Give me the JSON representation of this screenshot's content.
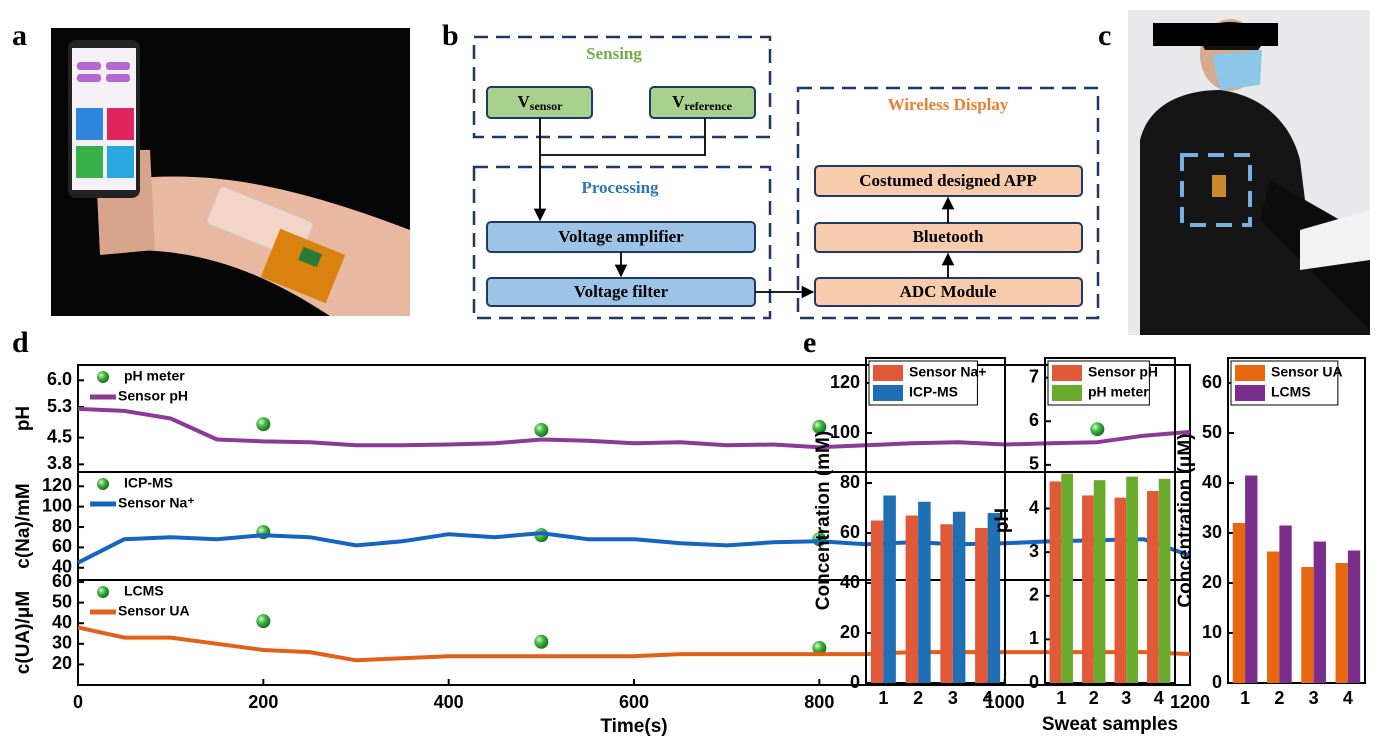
{
  "panel_labels": [
    "a",
    "b",
    "c",
    "d",
    "e"
  ],
  "diagram": {
    "groups": [
      {
        "title": "Sensing"
      },
      {
        "title": "Processing"
      },
      {
        "title": "Wireless Display"
      }
    ],
    "nodes": [
      {
        "text": "V",
        "sub": "sensor"
      },
      {
        "text": "V",
        "sub": "reference"
      },
      {
        "text": "Voltage amplifier"
      },
      {
        "text": "Voltage filter"
      },
      {
        "text": "Costumed designed APP"
      },
      {
        "text": "Bluetooth"
      },
      {
        "text": "ADC Module"
      }
    ]
  },
  "chart_data": [
    {
      "type": "line",
      "ylabel": "pH",
      "xlim": [
        0,
        1200
      ],
      "ylim": [
        3.6,
        6.4
      ],
      "yticks": [
        3.8,
        4.5,
        5.3,
        {
          "value": 6,
          "label": "6.0"
        }
      ],
      "legend": "upper left",
      "series": [
        {
          "name": "pH meter",
          "mode": "markers",
          "color": "#2e9e2e",
          "x": [
            200,
            500,
            800,
            1100
          ],
          "values": [
            4.85,
            4.7,
            4.78,
            4.72
          ]
        },
        {
          "name": "Sensor pH",
          "mode": "line",
          "color": "#8b3a96",
          "x": [
            0,
            50,
            100,
            150,
            200,
            250,
            300,
            350,
            400,
            450,
            500,
            550,
            600,
            650,
            700,
            750,
            800,
            850,
            900,
            950,
            1000,
            1050,
            1100,
            1150,
            1200
          ],
          "values": [
            5.25,
            5.2,
            5.0,
            4.45,
            4.4,
            4.38,
            4.3,
            4.3,
            4.32,
            4.35,
            4.45,
            4.42,
            4.35,
            4.38,
            4.3,
            4.32,
            4.25,
            4.3,
            4.35,
            4.38,
            4.32,
            4.35,
            4.38,
            4.55,
            4.65
          ]
        }
      ]
    },
    {
      "type": "line",
      "ylabel": "c(Na)/mM",
      "xlim": [
        0,
        1200
      ],
      "ylim": [
        28,
        134
      ],
      "yticks": [
        40,
        60,
        80,
        100,
        120
      ],
      "legend": "upper left",
      "series": [
        {
          "name": "ICP-MS",
          "mode": "markers",
          "color": "#2e9e2e",
          "x": [
            200,
            500,
            800,
            1100
          ],
          "values": [
            75,
            72,
            68,
            67
          ]
        },
        {
          "name": "Sensor Na⁺",
          "mode": "line",
          "color": "#1565c0",
          "x": [
            0,
            50,
            100,
            150,
            200,
            250,
            300,
            350,
            400,
            450,
            500,
            550,
            600,
            650,
            700,
            750,
            800,
            850,
            900,
            950,
            1000,
            1050,
            1100,
            1150,
            1200
          ],
          "values": [
            45,
            68,
            70,
            68,
            72,
            70,
            62,
            66,
            73,
            70,
            74,
            68,
            68,
            64,
            62,
            65,
            66,
            63,
            65,
            63,
            64,
            66,
            67,
            68,
            52
          ]
        }
      ]
    },
    {
      "type": "line",
      "ylabel": "c(UA)/μM",
      "xlabel": "Time(s)",
      "xlim": [
        0,
        1200
      ],
      "ylim": [
        10,
        61
      ],
      "xticks": [
        0,
        200,
        400,
        600,
        800,
        1000,
        1200
      ],
      "yticks": [
        20,
        30,
        40,
        50,
        60
      ],
      "legend": "upper left",
      "series": [
        {
          "name": "LCMS",
          "mode": "markers",
          "color": "#2e9e2e",
          "x": [
            200,
            500,
            800,
            1100
          ],
          "values": [
            41,
            31,
            28,
            26
          ]
        },
        {
          "name": "Sensor UA",
          "mode": "line",
          "color": "#e3601a",
          "x": [
            0,
            50,
            100,
            150,
            200,
            250,
            300,
            350,
            400,
            450,
            500,
            550,
            600,
            650,
            700,
            750,
            800,
            850,
            900,
            950,
            1000,
            1050,
            1100,
            1150,
            1200
          ],
          "values": [
            38,
            33,
            33,
            30,
            27,
            26,
            22,
            23,
            24,
            24,
            24,
            24,
            24,
            25,
            25,
            25,
            25,
            25,
            26,
            26,
            26,
            26,
            26,
            26,
            25
          ]
        }
      ]
    },
    {
      "type": "bar",
      "ylabel": "Concentration (mM)",
      "categories": [
        "1",
        "2",
        "3",
        "4"
      ],
      "ylim": [
        0,
        130
      ],
      "yticks": [
        0,
        20,
        40,
        60,
        80,
        100,
        120
      ],
      "legend": "upper left",
      "series": [
        {
          "name": "Sensor Na+",
          "color": "#e05a3a",
          "values": [
            65,
            67,
            63.5,
            62
          ]
        },
        {
          "name": "ICP-MS",
          "color": "#1f6fb5",
          "values": [
            75,
            72.5,
            68.5,
            68
          ]
        }
      ]
    },
    {
      "type": "bar",
      "ylabel": "pH",
      "xlabel": "Sweat samples",
      "categories": [
        "1",
        "2",
        "3",
        "4"
      ],
      "ylim": [
        0,
        7.45
      ],
      "yticks": [
        0,
        1,
        2,
        3,
        4,
        5,
        6,
        7
      ],
      "legend": "upper left",
      "series": [
        {
          "name": "Sensor pH",
          "color": "#e05a3a",
          "values": [
            4.62,
            4.3,
            4.25,
            4.4
          ]
        },
        {
          "name": "pH meter",
          "color": "#6aaa2c",
          "values": [
            4.8,
            4.65,
            4.73,
            4.68
          ]
        }
      ]
    },
    {
      "type": "bar",
      "ylabel": "Concentration (μM)",
      "categories": [
        "1",
        "2",
        "3",
        "4"
      ],
      "ylim": [
        0,
        65
      ],
      "yticks": [
        0,
        10,
        20,
        30,
        40,
        50,
        60
      ],
      "legend": "upper left",
      "series": [
        {
          "name": "Sensor UA",
          "color": "#e8670f",
          "values": [
            32,
            26.3,
            23.2,
            24
          ]
        },
        {
          "name": "LCMS",
          "color": "#7b2d8b",
          "values": [
            41.5,
            31.5,
            28.3,
            26.5
          ]
        }
      ]
    }
  ]
}
